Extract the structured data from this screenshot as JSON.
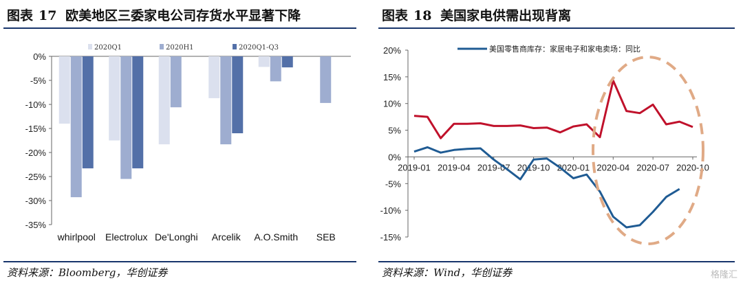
{
  "left": {
    "figure_label": "图表",
    "figure_number": "17",
    "title": "欧美地区三委家电公司存货水平显著下降",
    "source": "资料来源：Bloomberg，华创证券"
  },
  "right": {
    "figure_label": "图表",
    "figure_number": "18",
    "title": "美国家电供需出现背离",
    "source": "资料来源：Wind，华创证券"
  },
  "watermark": "格隆汇",
  "colors": {
    "rule": "#17346b",
    "bar_q1": "#dbe0ee",
    "bar_h1": "#9eadd0",
    "bar_q1q3": "#5370a8",
    "line_blue": "#1f5b93",
    "line_red": "#c0112b",
    "ellipse": "#e0aa86"
  },
  "chart_data": [
    {
      "type": "bar",
      "categories": [
        "whirlpool",
        "Electrolux",
        "De'Longhi",
        "Arcelik",
        "A.O.Smith",
        "SEB"
      ],
      "series": [
        {
          "name": "2020Q1",
          "values": [
            -14,
            -17.5,
            -18.3,
            -8.7,
            -2.2,
            null
          ]
        },
        {
          "name": "2020H1",
          "values": [
            -29.3,
            -25.5,
            -10.6,
            -18.3,
            -5.2,
            -9.7
          ]
        },
        {
          "name": "2020Q1-Q3",
          "values": [
            -23.3,
            -23.3,
            null,
            -16,
            -2.3,
            null
          ]
        }
      ],
      "ylim": [
        -35,
        0
      ],
      "yticks": [
        "0%",
        "-5%",
        "-10%",
        "-15%",
        "-20%",
        "-25%",
        "-30%",
        "-35%"
      ],
      "legend": "top",
      "grid": false
    },
    {
      "type": "line",
      "x": [
        "2019-01",
        "2019-02",
        "2019-03",
        "2019-04",
        "2019-05",
        "2019-06",
        "2019-07",
        "2019-08",
        "2019-09",
        "2019-10",
        "2019-11",
        "2019-12",
        "2020-01",
        "2020-02",
        "2020-03",
        "2020-04",
        "2020-05",
        "2020-06",
        "2020-07",
        "2020-08",
        "2020-09",
        "2020-10"
      ],
      "xticks": [
        "2019-01",
        "2019-04",
        "2019-07",
        "2019-10",
        "2020-01",
        "2020-04",
        "2020-07",
        "2020-10"
      ],
      "series": [
        {
          "name": "美国零售商库存：家居电子和家电卖场：同比",
          "values": [
            1.0,
            1.8,
            0.8,
            1.3,
            1.5,
            1.6,
            -0.5,
            -2.3,
            -4.2,
            -0.5,
            -0.3,
            -2.0,
            -4.0,
            -3.3,
            -6.5,
            -11.2,
            -13.2,
            -12.8,
            -10.3,
            -7.5,
            -6.0,
            null
          ]
        },
        {
          "name": "",
          "values": [
            7.7,
            7.5,
            3.5,
            6.2,
            6.2,
            6.3,
            5.8,
            5.8,
            5.9,
            5.4,
            5.5,
            4.6,
            5.7,
            6.1,
            3.7,
            14.3,
            8.6,
            8.2,
            9.8,
            6.1,
            6.6,
            5.6
          ]
        }
      ],
      "ylim": [
        -15,
        20
      ],
      "yticks": [
        "20%",
        "15%",
        "10%",
        "5%",
        "0%",
        "-5%",
        "-10%",
        "-15%"
      ],
      "legend": "top",
      "grid": false
    }
  ]
}
